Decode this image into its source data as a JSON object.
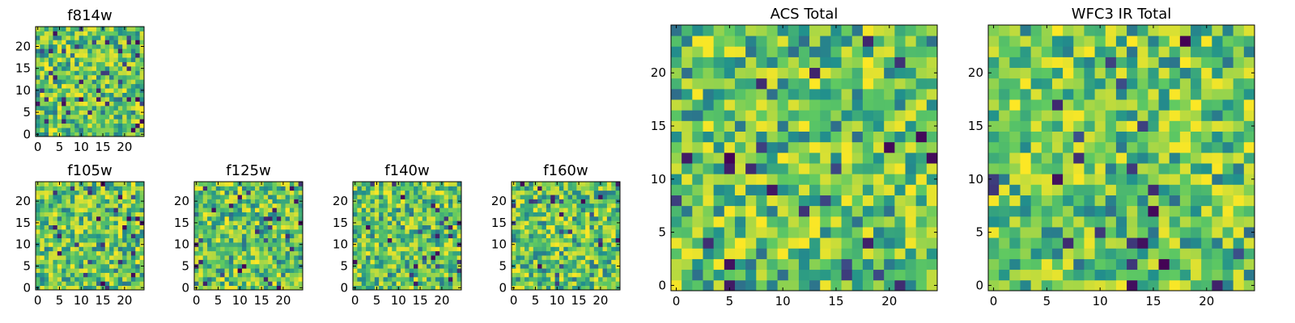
{
  "colormap": [
    "#440154",
    "#3b528b",
    "#21918c",
    "#5ec962",
    "#fde725"
  ],
  "chart_data": [
    {
      "type": "heatmap",
      "title": "f814w",
      "cols": 25,
      "rows": 25,
      "seed": 814,
      "xticks": [
        0,
        5,
        10,
        15,
        20
      ],
      "yticks": [
        0,
        5,
        10,
        15,
        20
      ],
      "xlim": [
        -0.5,
        24.5
      ],
      "ylim": [
        -0.5,
        24.5
      ]
    },
    {
      "type": "heatmap",
      "title": "f105w",
      "cols": 25,
      "rows": 25,
      "seed": 105,
      "xticks": [
        0,
        5,
        10,
        15,
        20
      ],
      "yticks": [
        0,
        5,
        10,
        15,
        20
      ],
      "xlim": [
        -0.5,
        24.5
      ],
      "ylim": [
        -0.5,
        24.5
      ]
    },
    {
      "type": "heatmap",
      "title": "f125w",
      "cols": 25,
      "rows": 25,
      "seed": 125,
      "xticks": [
        0,
        5,
        10,
        15,
        20
      ],
      "yticks": [
        0,
        5,
        10,
        15,
        20
      ],
      "xlim": [
        -0.5,
        24.5
      ],
      "ylim": [
        -0.5,
        24.5
      ]
    },
    {
      "type": "heatmap",
      "title": "f140w",
      "cols": 25,
      "rows": 25,
      "seed": 140,
      "xticks": [
        0,
        5,
        10,
        15,
        20
      ],
      "yticks": [
        0,
        5,
        10,
        15,
        20
      ],
      "xlim": [
        -0.5,
        24.5
      ],
      "ylim": [
        -0.5,
        24.5
      ]
    },
    {
      "type": "heatmap",
      "title": "f160w",
      "cols": 25,
      "rows": 25,
      "seed": 160,
      "xticks": [
        0,
        5,
        10,
        15,
        20
      ],
      "yticks": [
        0,
        5,
        10,
        15,
        20
      ],
      "xlim": [
        -0.5,
        24.5
      ],
      "ylim": [
        -0.5,
        24.5
      ]
    },
    {
      "type": "heatmap",
      "title": "ACS Total",
      "cols": 25,
      "rows": 25,
      "seed": 999,
      "xticks": [
        0,
        5,
        10,
        15,
        20
      ],
      "yticks": [
        0,
        5,
        10,
        15,
        20
      ],
      "xlim": [
        -0.5,
        24.5
      ],
      "ylim": [
        -0.5,
        24.5
      ]
    },
    {
      "type": "heatmap",
      "title": "WFC3 IR Total",
      "cols": 25,
      "rows": 25,
      "seed": 31,
      "xticks": [
        0,
        5,
        10,
        15,
        20
      ],
      "yticks": [
        0,
        5,
        10,
        15,
        20
      ],
      "xlim": [
        -0.5,
        24.5
      ],
      "ylim": [
        -0.5,
        24.5
      ]
    }
  ]
}
